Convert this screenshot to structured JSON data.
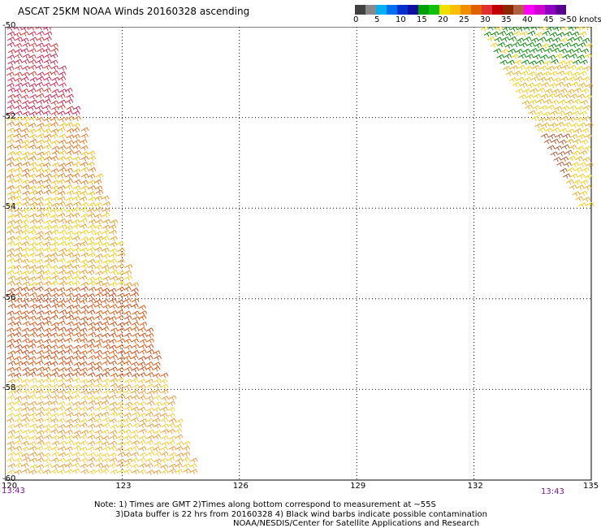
{
  "title": "ASCAT 25KM NOAA Winds 20160328 ascending",
  "scale": {
    "units": "knots",
    "segments": [
      {
        "label": "0",
        "colors": [
          "#404040",
          "#888888"
        ]
      },
      {
        "label": "5",
        "colors": [
          "#00b0f0",
          "#0070f0"
        ]
      },
      {
        "label": "10",
        "colors": [
          "#0030d0",
          "#1010a0"
        ]
      },
      {
        "label": "15",
        "colors": [
          "#00a000",
          "#10c010"
        ]
      },
      {
        "label": "20",
        "colors": [
          "#f0e000",
          "#f8c000"
        ]
      },
      {
        "label": "25",
        "colors": [
          "#f09000",
          "#e06000"
        ]
      },
      {
        "label": "30",
        "colors": [
          "#e03030",
          "#c00000"
        ]
      },
      {
        "label": "35",
        "colors": [
          "#8b2800",
          "#b06040"
        ]
      },
      {
        "label": "40",
        "colors": [
          "#ff00ff",
          "#d000d0"
        ]
      },
      {
        "label": "45",
        "colors": [
          "#9000c0",
          "#5a0090"
        ]
      }
    ],
    "last_label": ">50 knots"
  },
  "map": {
    "latitudes": [
      "-50",
      "-52",
      "-54",
      "-56",
      "-58",
      "-60"
    ],
    "longitudes": [
      "120",
      "123",
      "126",
      "129",
      "132",
      "135"
    ],
    "left_time": "13:43",
    "right_time": "13:43"
  },
  "note": {
    "line1": "Note: 1) Times are GMT 2)Times along bottom correspond to measurement at ~55S",
    "line2": "3)Data buffer is 22 hrs from 20160328 4) Black wind barbs indicate possible contamination",
    "line3": "NOAA/NESDIS/Center for Satellite Applications and Research"
  }
}
